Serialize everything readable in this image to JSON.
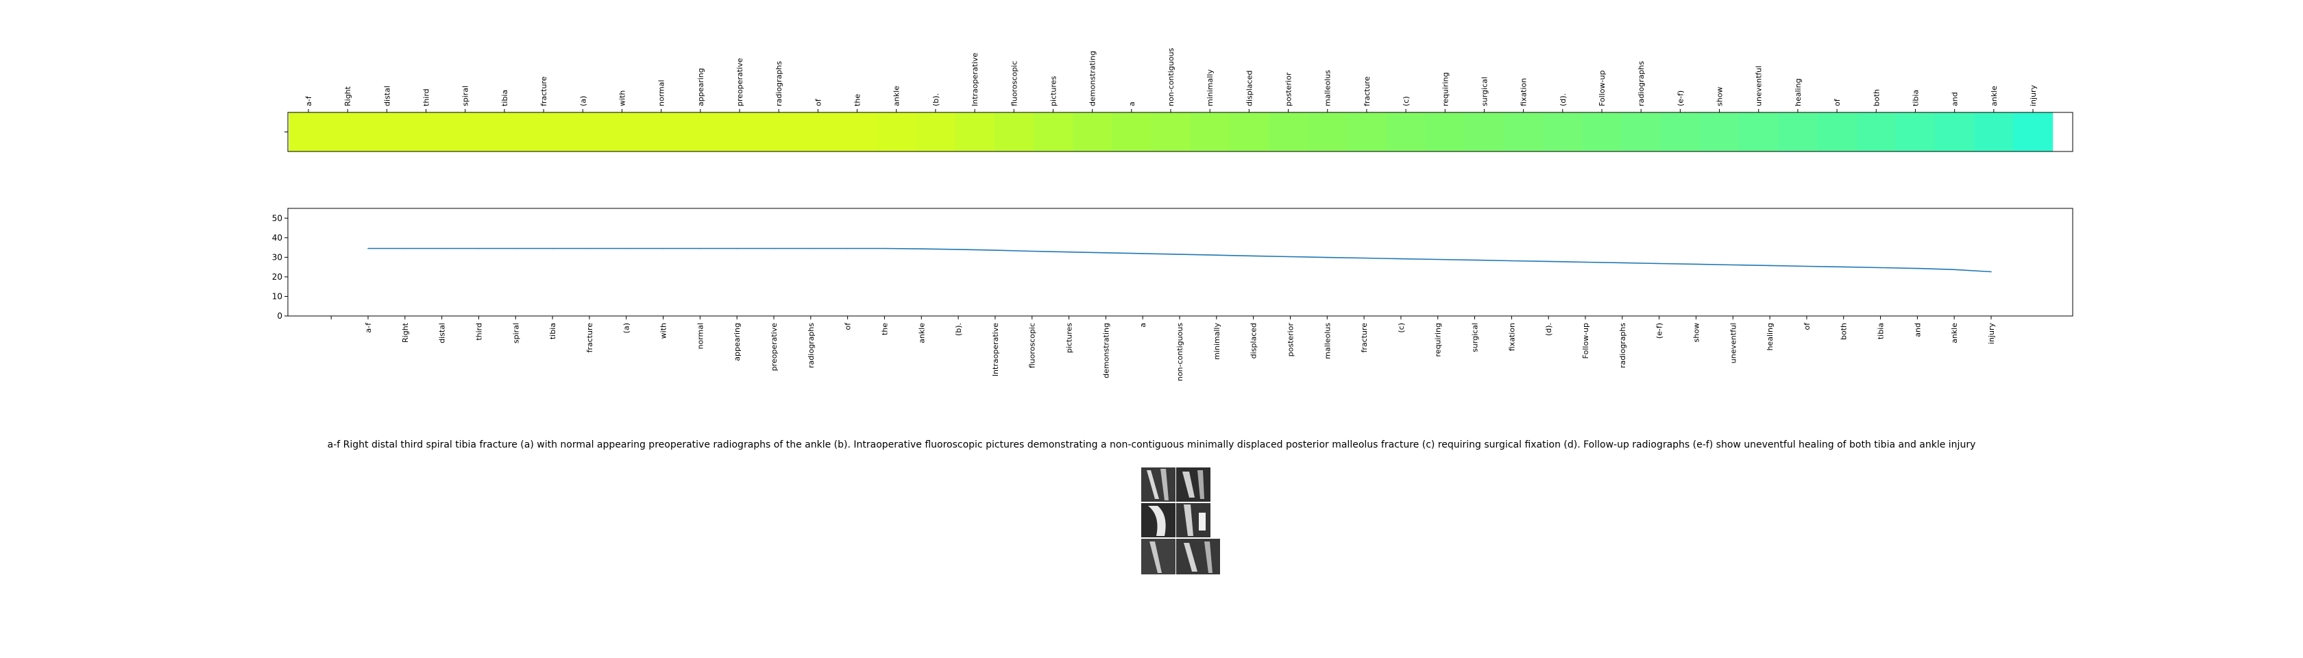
{
  "chart_data": [
    {
      "type": "heatmap",
      "colormap": "viridis-like (yellow to cyan)",
      "x_tick_labels": [
        "a-f",
        "Right",
        "distal",
        "third",
        "spiral",
        "tibia",
        "fracture",
        "(a)",
        "with",
        "normal",
        "appearing",
        "preoperative",
        "radiographs",
        "of",
        "the",
        "ankle",
        "(b).",
        "Intraoperative",
        "fluoroscopic",
        "pictures",
        "demonstrating",
        "a",
        "non-contiguous",
        "minimally",
        "displaced",
        "posterior",
        "malleolus",
        "fracture",
        "(c)",
        "requiring",
        "surgical",
        "fixation",
        "(d).",
        "Follow-up",
        "radiographs",
        "(e-f)",
        "show",
        "uneventful",
        "healing",
        "of",
        "both",
        "tibia",
        "and",
        "ankle",
        "injury"
      ],
      "cell_colors": [
        "#d8fd1f",
        "#d8fd1f",
        "#d8fd1f",
        "#d8fd1f",
        "#d8fd1f",
        "#d8fd1f",
        "#d8fd1f",
        "#d8fd1f",
        "#d8fd1f",
        "#d8fd1f",
        "#d8fd1f",
        "#d8fd1f",
        "#d8fd1f",
        "#d8fd1f",
        "#d8fd1f",
        "#d6fd20",
        "#d2fd22",
        "#c8fd28",
        "#befc2e",
        "#b4fc34",
        "#aafc3a",
        "#a3fb40",
        "#9ffb44",
        "#98fb4a",
        "#92fb4e",
        "#8cfa54",
        "#88fa58",
        "#84fa5d",
        "#80fa62",
        "#7cfa66",
        "#7afa6a",
        "#78fa70",
        "#74fa74",
        "#70fa7a",
        "#6cfa80",
        "#68fa86",
        "#64fa8c",
        "#5efa92",
        "#58fa98",
        "#52fa9e",
        "#4cfaa6",
        "#46faae",
        "#40fab6",
        "#38fac0",
        "#2cfad0"
      ]
    },
    {
      "type": "line",
      "x": [
        "a-f",
        "Right",
        "distal",
        "third",
        "spiral",
        "tibia",
        "fracture",
        "(a)",
        "with",
        "normal",
        "appearing",
        "preoperative",
        "radiographs",
        "of",
        "the",
        "ankle",
        "(b).",
        "Intraoperative",
        "fluoroscopic",
        "pictures",
        "demonstrating",
        "a",
        "non-contiguous",
        "minimally",
        "displaced",
        "posterior",
        "malleolus",
        "fracture",
        "(c)",
        "requiring",
        "surgical",
        "fixation",
        "(d).",
        "Follow-up",
        "radiographs",
        "(e-f)",
        "show",
        "uneventful",
        "healing",
        "of",
        "both",
        "tibia",
        "and",
        "ankle",
        "injury"
      ],
      "series": [
        {
          "values": [
            34.5,
            34.5,
            34.5,
            34.5,
            34.5,
            34.5,
            34.5,
            34.5,
            34.5,
            34.5,
            34.5,
            34.5,
            34.5,
            34.5,
            34.5,
            34.3,
            34.0,
            33.6,
            33.1,
            32.7,
            32.3,
            31.9,
            31.5,
            31.1,
            30.7,
            30.3,
            29.9,
            29.6,
            29.2,
            28.9,
            28.6,
            28.2,
            27.9,
            27.5,
            27.2,
            26.8,
            26.5,
            26.1,
            25.8,
            25.4,
            25.1,
            24.7,
            24.3,
            23.7,
            22.6
          ],
          "color": "#1f77b4"
        }
      ],
      "ylim": [
        0,
        55
      ],
      "y_ticks": [
        0,
        10,
        20,
        30,
        40,
        50
      ]
    }
  ],
  "caption": "a-f Right distal third spiral tibia fracture (a) with normal appearing preoperative radiographs of the ankle (b). Intraoperative fluoroscopic pictures demonstrating a non-contiguous minimally displaced posterior malleolus fracture (c) requiring surgical fixation (d). Follow-up radiographs (e-f) show uneventful healing of both tibia and ankle injury"
}
